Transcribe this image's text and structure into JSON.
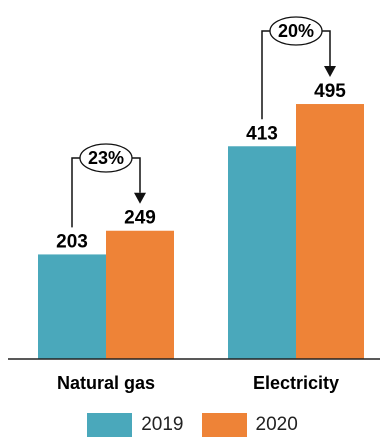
{
  "chart_data": {
    "type": "bar",
    "categories": [
      "Natural gas",
      "Electricity"
    ],
    "series": [
      {
        "name": "2019",
        "values": [
          203,
          413
        ],
        "color": "#4aa8bb"
      },
      {
        "name": "2020",
        "values": [
          249,
          495
        ],
        "color": "#ee8337"
      }
    ],
    "changes": [
      "23%",
      "20%"
    ],
    "title": "",
    "xlabel": "",
    "ylabel": "",
    "ylim": [
      0,
      550
    ],
    "grid": false,
    "legend_position": "bottom"
  }
}
